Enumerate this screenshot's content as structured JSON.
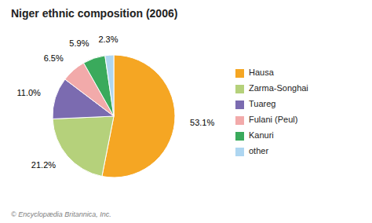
{
  "chart_data": {
    "type": "pie",
    "title": "Niger ethnic composition (2006)",
    "categories": [
      "Hausa",
      "Zarma-Songhai",
      "Tuareg",
      "Fulani (Peul)",
      "Kanuri",
      "other"
    ],
    "values": [
      53.1,
      21.2,
      11.0,
      6.5,
      5.9,
      2.3
    ],
    "value_labels": [
      "53.1%",
      "21.2%",
      "11.0%",
      "6.5%",
      "5.9%",
      "2.3%"
    ],
    "colors": [
      "#F5A623",
      "#B5D17B",
      "#7B6BB0",
      "#F2AAAA",
      "#3AAA5C",
      "#AED6F1"
    ],
    "data_labels": true,
    "legend": "right",
    "annotations": [
      "© Encyclopædia Britannica, Inc."
    ]
  }
}
